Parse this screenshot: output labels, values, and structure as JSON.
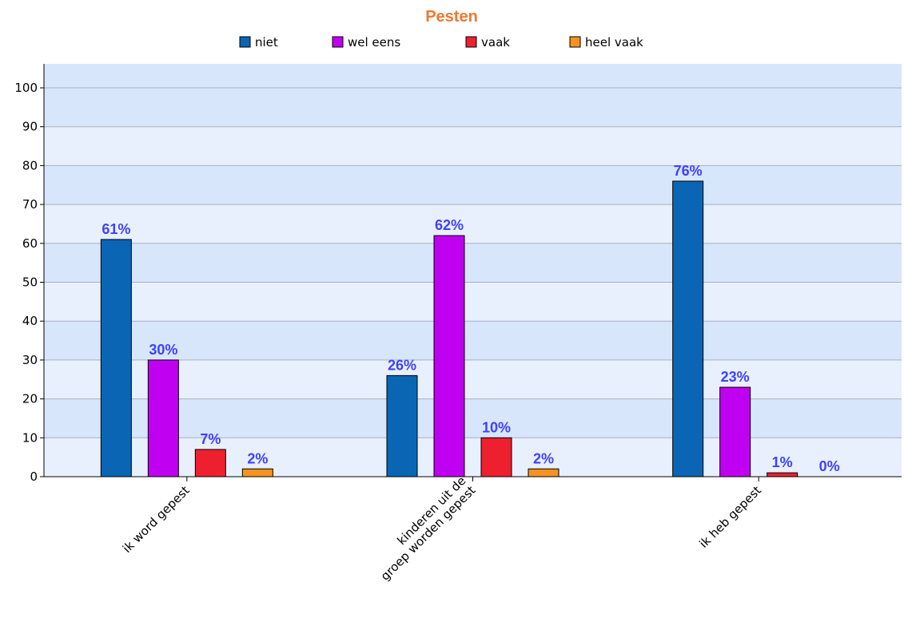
{
  "chart_data": {
    "type": "bar",
    "title": "Pesten",
    "categories": [
      [
        "ik word gepest"
      ],
      [
        "kinderen uit de",
        "groep worden gepest"
      ],
      [
        "ik heb gepest"
      ]
    ],
    "series": [
      {
        "name": "niet",
        "values": [
          61,
          26,
          76
        ],
        "color": "#0a66b4"
      },
      {
        "name": "wel eens",
        "values": [
          30,
          62,
          23
        ],
        "color": "#c000f0"
      },
      {
        "name": "vaak",
        "values": [
          7,
          10,
          1
        ],
        "color": "#ee2030"
      },
      {
        "name": "heel vaak",
        "values": [
          2,
          2,
          0
        ],
        "color": "#f59420"
      }
    ],
    "data_labels": [
      [
        "61%",
        "26%",
        "76%"
      ],
      [
        "30%",
        "62%",
        "23%"
      ],
      [
        "7%",
        "10%",
        "1%"
      ],
      [
        "2%",
        "2%",
        "0%"
      ]
    ],
    "ylim": [
      0,
      100
    ],
    "yticks": [
      0,
      10,
      20,
      30,
      40,
      50,
      60,
      70,
      80,
      90,
      100
    ],
    "grid": true,
    "legend": "top",
    "colors": {
      "title": "#f07830",
      "data_label": "#4040ff",
      "band_light": "#e8f0fe",
      "band_dark": "#d8e6fc",
      "gridline": "#a8b0c0"
    }
  }
}
